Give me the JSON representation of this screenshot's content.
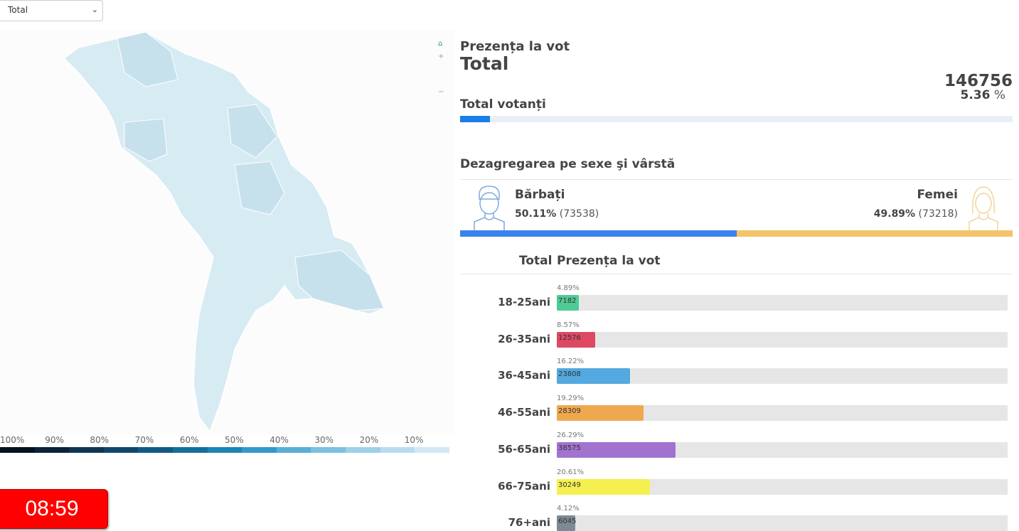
{
  "filter": {
    "selected": "Total"
  },
  "legend": {
    "ticks": [
      "100%",
      "90%",
      "80%",
      "70%",
      "60%",
      "50%",
      "40%",
      "30%",
      "20%",
      "10%"
    ],
    "colors": [
      "#06121c",
      "#0b2338",
      "#0f3552",
      "#10476a",
      "#115a84",
      "#136e9c",
      "#1d84b6",
      "#3399c9",
      "#5aaed6",
      "#7cc0df",
      "#9cd0e8",
      "#b8dcef",
      "#d2e8f4"
    ]
  },
  "timer": "08:59",
  "header": {
    "title": "Prezența la vot",
    "subtitle": "Total"
  },
  "total": {
    "label": "Total votanți",
    "count": "146756",
    "percent_value": "5.36",
    "percent_sign": "%",
    "fraction": 0.0536,
    "color": "#1a7de8"
  },
  "gender": {
    "title": "Dezagregarea pe sexe şi vârstă",
    "men": {
      "label": "Bărbați",
      "percent": "50.11%",
      "count": "(73538)",
      "fraction": 0.5011,
      "color": "#3b82ee"
    },
    "women": {
      "label": "Femei",
      "percent": "49.89%",
      "count": "(73218)",
      "fraction": 0.4989,
      "color": "#f5c36a"
    }
  },
  "age": {
    "title_left": "Total",
    "title_right": "Prezența la vot",
    "groups": [
      {
        "label": "18-25ani",
        "percent": "4.89%",
        "count": "7182",
        "value": 4.89,
        "color": "#4fcb94"
      },
      {
        "label": "26-35ani",
        "percent": "8.57%",
        "count": "12576",
        "value": 8.57,
        "color": "#dd4963"
      },
      {
        "label": "36-45ani",
        "percent": "16.22%",
        "count": "23808",
        "value": 16.22,
        "color": "#53a9e0"
      },
      {
        "label": "46-55ani",
        "percent": "19.29%",
        "count": "28309",
        "value": 19.29,
        "color": "#f0a850"
      },
      {
        "label": "56-65ani",
        "percent": "26.29%",
        "count": "38575",
        "value": 26.29,
        "color": "#a173cf"
      },
      {
        "label": "66-75ani",
        "percent": "20.61%",
        "count": "30249",
        "value": 20.61,
        "color": "#f5f050"
      },
      {
        "label": "76+ani",
        "percent": "4.12%",
        "count": "6045",
        "value": 4.12,
        "color": "#7d8a96"
      }
    ]
  }
}
